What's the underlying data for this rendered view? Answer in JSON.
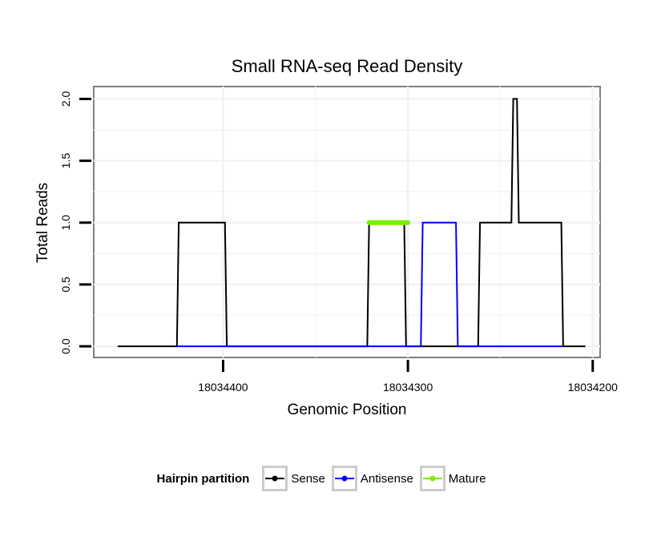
{
  "chart_data": {
    "type": "line",
    "title": "Small RNA-seq Read Density",
    "xlabel": "Genomic Position",
    "ylabel": "Total Reads",
    "x_reversed": true,
    "xlim": [
      18034470,
      18034196
    ],
    "ylim": [
      -0.09,
      2.1
    ],
    "xticks": [
      {
        "value": 18034400,
        "label": "18034400"
      },
      {
        "value": 18034300,
        "label": "18034300"
      },
      {
        "value": 18034200,
        "label": "18034200"
      }
    ],
    "yticks": [
      {
        "value": 0,
        "label": "0.0"
      },
      {
        "value": 0.5,
        "label": "0.5"
      },
      {
        "value": 1,
        "label": "1.0"
      },
      {
        "value": 1.5,
        "label": "1.5"
      },
      {
        "value": 2,
        "label": "2.0"
      }
    ],
    "grid": true,
    "legend_position": "bottom",
    "series": [
      {
        "name": "Sense",
        "color": "#000000",
        "points": [
          [
            18034457,
            0
          ],
          [
            18034425,
            0
          ],
          [
            18034424,
            1
          ],
          [
            18034399,
            1
          ],
          [
            18034398,
            0
          ],
          [
            18034322,
            0
          ],
          [
            18034321,
            1
          ],
          [
            18034302,
            1
          ],
          [
            18034301,
            0
          ],
          [
            18034262,
            0
          ],
          [
            18034261,
            1
          ],
          [
            18034244,
            1
          ],
          [
            18034243,
            2
          ],
          [
            18034241,
            2
          ],
          [
            18034240,
            1
          ],
          [
            18034217,
            1
          ],
          [
            18034216,
            0
          ],
          [
            18034204,
            0
          ]
        ]
      },
      {
        "name": "Antisense",
        "color": "#0000ff",
        "points": [
          [
            18034425,
            0
          ],
          [
            18034398,
            0
          ],
          [
            18034322,
            0
          ],
          [
            18034301,
            0
          ],
          [
            18034293,
            0
          ],
          [
            18034292,
            1
          ],
          [
            18034274,
            1
          ],
          [
            18034273,
            0
          ],
          [
            18034216,
            0
          ]
        ]
      },
      {
        "name": "Mature",
        "color": "#7cee00",
        "points": [
          [
            18034321,
            1
          ],
          [
            18034300,
            1
          ]
        ]
      }
    ],
    "legend": {
      "title": "Hairpin partition",
      "items": [
        {
          "label": "Sense",
          "color": "#000000"
        },
        {
          "label": "Antisense",
          "color": "#0000ff"
        },
        {
          "label": "Mature",
          "color": "#7cee00"
        }
      ]
    }
  }
}
